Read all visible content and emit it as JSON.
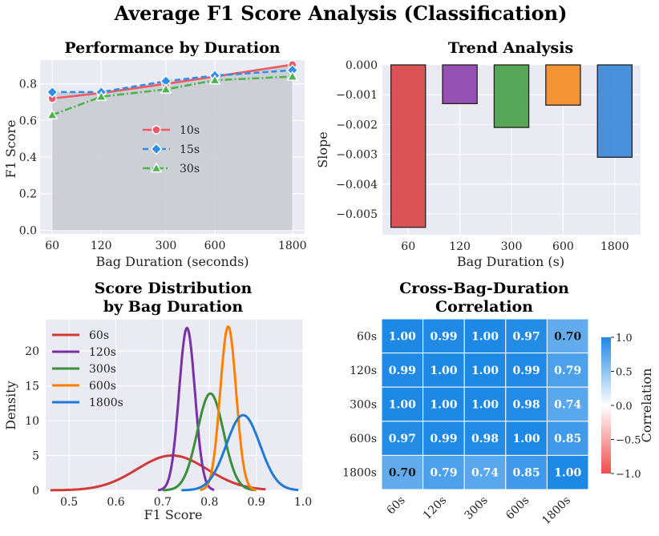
{
  "suptitle": "Average F1 Score Analysis (Classification)",
  "colors": {
    "panel_bg": "#eaeaf2",
    "s10": "#f05a64",
    "s15": "#2f8ee8",
    "s30": "#4db34d",
    "fill": "#c9cdd3",
    "bar_colors": [
      "#d9454a",
      "#8e44ad",
      "#4a9e4a",
      "#f28b24",
      "#3c87d8"
    ],
    "kde_colors": [
      "#d03a38",
      "#7b2fa8",
      "#3a8f3a",
      "#ff8000",
      "#1f7ad6"
    ]
  },
  "chart_data": [
    {
      "type": "line",
      "title": "Performance by Duration",
      "xlabel": "Bag Duration (seconds)",
      "ylabel": "F1 Score",
      "x": [
        60,
        120,
        300,
        600,
        1800
      ],
      "x_tick_labels": [
        "60",
        "120",
        "300",
        "600",
        "1800"
      ],
      "xscale": "log",
      "ylim": [
        -0.02,
        0.93
      ],
      "yticks": [
        0.0,
        0.2,
        0.4,
        0.6,
        0.8
      ],
      "y_tick_labels": [
        "0.0",
        "0.2",
        "0.4",
        "0.6",
        "0.8"
      ],
      "series": [
        {
          "name": "10s",
          "values": [
            0.72,
            0.75,
            0.8,
            0.84,
            0.905
          ],
          "style": "solid",
          "marker": "circle"
        },
        {
          "name": "15s",
          "values": [
            0.755,
            0.755,
            0.815,
            0.845,
            0.875
          ],
          "style": "dashed",
          "marker": "diamond"
        },
        {
          "name": "30s",
          "values": [
            0.63,
            0.73,
            0.77,
            0.82,
            0.84
          ],
          "style": "dashdot",
          "marker": "triangle"
        }
      ],
      "fill_between": {
        "lower": 0,
        "upper": "max"
      },
      "legend_position": "center"
    },
    {
      "type": "bar",
      "title": "Trend Analysis",
      "xlabel": "Bag Duration (s)",
      "ylabel": "Slope",
      "categories": [
        "60",
        "120",
        "300",
        "600",
        "1800"
      ],
      "values": [
        -0.00545,
        -0.0013,
        -0.0021,
        -0.00135,
        -0.0031
      ],
      "ylim": [
        -0.0057,
        0.0
      ],
      "yticks": [
        0.0,
        -0.001,
        -0.002,
        -0.003,
        -0.004,
        -0.005
      ],
      "y_tick_labels": [
        "0.000",
        "−0.001",
        "−0.002",
        "−0.003",
        "−0.004",
        "−0.005"
      ]
    },
    {
      "type": "line",
      "subtype": "kde",
      "title": [
        "Score Distribution",
        "by Bag Duration"
      ],
      "xlabel": "F1 Score",
      "ylabel": "Density",
      "xlim": [
        0.45,
        1.0
      ],
      "ylim": [
        0,
        24.5
      ],
      "xticks": [
        0.5,
        0.6,
        0.7,
        0.8,
        0.9,
        1.0
      ],
      "x_tick_labels": [
        "0.5",
        "0.6",
        "0.7",
        "0.8",
        "0.9",
        "1.0"
      ],
      "yticks": [
        0,
        5,
        10,
        15,
        20
      ],
      "y_tick_labels": [
        "0",
        "5",
        "10",
        "15",
        "20"
      ],
      "series": [
        {
          "name": "60s",
          "mean": 0.72,
          "sd": 0.075,
          "peak": 5.0,
          "range": [
            0.46,
            0.92
          ]
        },
        {
          "name": "120s",
          "mean": 0.752,
          "sd": 0.017,
          "peak": 23.3,
          "range": [
            0.69,
            0.81
          ]
        },
        {
          "name": "300s",
          "mean": 0.802,
          "sd": 0.028,
          "peak": 13.9,
          "range": [
            0.7,
            0.9
          ]
        },
        {
          "name": "600s",
          "mean": 0.84,
          "sd": 0.017,
          "peak": 23.5,
          "range": [
            0.78,
            0.9
          ]
        },
        {
          "name": "1800s",
          "mean": 0.872,
          "sd": 0.036,
          "peak": 10.8,
          "range": [
            0.74,
            0.99
          ]
        }
      ],
      "legend_position": "upper left"
    },
    {
      "type": "heatmap",
      "title": [
        "Cross-Bag-Duration",
        "Correlation"
      ],
      "labels": [
        "60s",
        "120s",
        "300s",
        "600s",
        "1800s"
      ],
      "matrix": [
        [
          1.0,
          0.99,
          1.0,
          0.97,
          0.7
        ],
        [
          0.99,
          1.0,
          1.0,
          0.99,
          0.79
        ],
        [
          1.0,
          1.0,
          1.0,
          0.98,
          0.74
        ],
        [
          0.97,
          0.99,
          0.98,
          1.0,
          0.85
        ],
        [
          0.7,
          0.79,
          0.74,
          0.85,
          1.0
        ]
      ],
      "value_labels": [
        [
          "1.00",
          "0.99",
          "1.00",
          "0.97",
          "0.70"
        ],
        [
          "0.99",
          "1.00",
          "1.00",
          "0.99",
          "0.79"
        ],
        [
          "1.00",
          "1.00",
          "1.00",
          "0.98",
          "0.74"
        ],
        [
          "0.97",
          "0.99",
          "0.98",
          "1.00",
          "0.85"
        ],
        [
          "0.70",
          "0.79",
          "0.74",
          "0.85",
          "1.00"
        ]
      ],
      "colorbar_label": "Correlation",
      "colorbar_range": [
        -1.0,
        1.0
      ],
      "colorbar_ticks": [
        1.0,
        0.5,
        0.0,
        -0.5,
        -1.0
      ],
      "colorbar_tick_labels": [
        "1.0",
        "0.5",
        "0.0",
        "−0.5",
        "−1.0"
      ]
    }
  ]
}
